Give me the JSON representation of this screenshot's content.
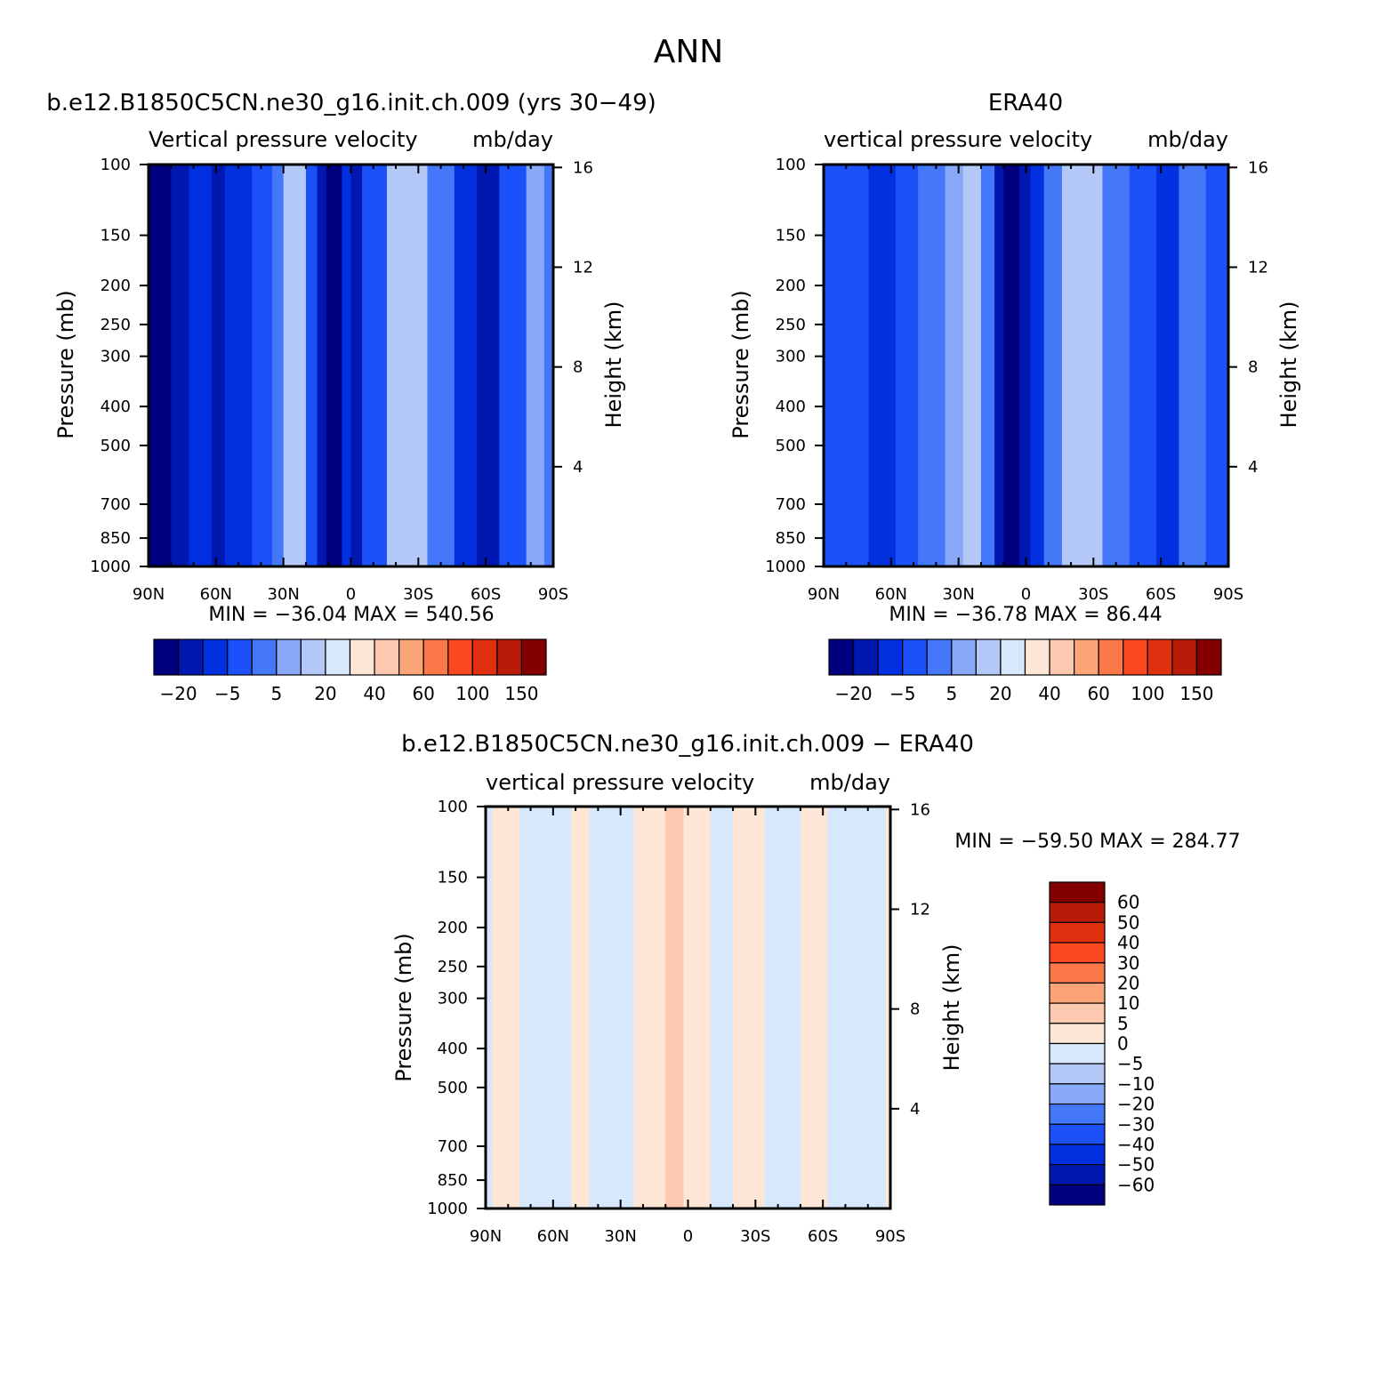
{
  "page_title": "ANN",
  "colors": {
    "abs_scale": [
      "#00007f",
      "#0018b0",
      "#0030e0",
      "#1c50f8",
      "#4478f8",
      "#88a8f8",
      "#b4c8f8",
      "#d8e8fc",
      "#fde6d6",
      "#fcc8b0",
      "#fba478",
      "#fb7848",
      "#fb4820",
      "#e03010",
      "#b81c08",
      "#840000"
    ],
    "diff_scale": [
      "#00007f",
      "#0018b0",
      "#0030e0",
      "#1c50f8",
      "#4478f8",
      "#88a8f8",
      "#b4c8f8",
      "#d8e8fc",
      "#fde6d6",
      "#fcc8b0",
      "#fba478",
      "#fb7848",
      "#fb4820",
      "#e03010",
      "#b81c08",
      "#840000"
    ]
  },
  "chart_data": [
    {
      "id": "model",
      "type": "heatmap",
      "title": "b.e12.B1850C5CN.ne30_g16.init.ch.009 (yrs 30-49)",
      "left_string": "Vertical pressure velocity",
      "right_string": "mb/day",
      "ylabel": "Pressure (mb)",
      "y2label": "Height (km)",
      "x_ticks": [
        "90N",
        "60N",
        "30N",
        "0",
        "30S",
        "60S",
        "90S"
      ],
      "x_values": [
        90,
        60,
        30,
        0,
        -30,
        -60,
        -90
      ],
      "xlim": [
        90,
        -90
      ],
      "y_ticks": [
        "100",
        "150",
        "200",
        "250",
        "300",
        "400",
        "500",
        "700",
        "850",
        "1000"
      ],
      "y_values": [
        100,
        150,
        200,
        250,
        300,
        400,
        500,
        700,
        850,
        1000
      ],
      "ylim": [
        100,
        1000
      ],
      "y_scale": "log",
      "y2_ticks": [
        "16",
        "12",
        "8",
        "4"
      ],
      "y2_values": [
        16,
        12,
        8,
        4
      ],
      "stats": "MIN = -36.04   MAX = 540.56",
      "colorbar": {
        "orientation": "horizontal",
        "labels": [
          "-20",
          "-5",
          "5",
          "20",
          "40",
          "60",
          "100",
          "150"
        ]
      },
      "field": [
        {
          "lat": [
            90,
            80
          ],
          "level": 0
        },
        {
          "lat": [
            80,
            72
          ],
          "level": 1
        },
        {
          "lat": [
            72,
            62
          ],
          "level": 2
        },
        {
          "lat": [
            62,
            56
          ],
          "level": 1
        },
        {
          "lat": [
            56,
            44
          ],
          "level": 2
        },
        {
          "lat": [
            44,
            35
          ],
          "level": 3
        },
        {
          "lat": [
            35,
            30
          ],
          "level": 4
        },
        {
          "lat": [
            30,
            20
          ],
          "level": 6
        },
        {
          "lat": [
            20,
            15
          ],
          "level": 3
        },
        {
          "lat": [
            15,
            11
          ],
          "level": 1
        },
        {
          "lat": [
            11,
            4
          ],
          "level": 0
        },
        {
          "lat": [
            4,
            0
          ],
          "level": 2
        },
        {
          "lat": [
            0,
            -5
          ],
          "level": 1
        },
        {
          "lat": [
            -5,
            -16
          ],
          "level": 3
        },
        {
          "lat": [
            -16,
            -34
          ],
          "level": 6
        },
        {
          "lat": [
            -34,
            -46
          ],
          "level": 4
        },
        {
          "lat": [
            -46,
            -56
          ],
          "level": 2
        },
        {
          "lat": [
            -56,
            -66
          ],
          "level": 1
        },
        {
          "lat": [
            -66,
            -78
          ],
          "level": 3
        },
        {
          "lat": [
            -78,
            -86
          ],
          "level": 5
        },
        {
          "lat": [
            -86,
            -90
          ],
          "level": 4
        }
      ]
    },
    {
      "id": "obs",
      "type": "heatmap",
      "title": "ERA40",
      "left_string": "vertical pressure velocity",
      "right_string": "mb/day",
      "ylabel": "Pressure (mb)",
      "y2label": "Height (km)",
      "x_ticks": [
        "90N",
        "60N",
        "30N",
        "0",
        "30S",
        "60S",
        "90S"
      ],
      "x_values": [
        90,
        60,
        30,
        0,
        -30,
        -60,
        -90
      ],
      "xlim": [
        90,
        -90
      ],
      "y_ticks": [
        "100",
        "150",
        "200",
        "250",
        "300",
        "400",
        "500",
        "700",
        "850",
        "1000"
      ],
      "y_values": [
        100,
        150,
        200,
        250,
        300,
        400,
        500,
        700,
        850,
        1000
      ],
      "ylim": [
        100,
        1000
      ],
      "y_scale": "log",
      "y2_ticks": [
        "16",
        "12",
        "8",
        "4"
      ],
      "y2_values": [
        16,
        12,
        8,
        4
      ],
      "stats": "MIN = -36.78   MAX =   86.44",
      "colorbar": {
        "orientation": "horizontal",
        "labels": [
          "-20",
          "-5",
          "5",
          "20",
          "40",
          "60",
          "100",
          "150"
        ]
      },
      "field": [
        {
          "lat": [
            90,
            80
          ],
          "level": 3
        },
        {
          "lat": [
            80,
            70
          ],
          "level": 3
        },
        {
          "lat": [
            70,
            58
          ],
          "level": 2
        },
        {
          "lat": [
            58,
            48
          ],
          "level": 3
        },
        {
          "lat": [
            48,
            36
          ],
          "level": 4
        },
        {
          "lat": [
            36,
            28
          ],
          "level": 5
        },
        {
          "lat": [
            28,
            20
          ],
          "level": 6
        },
        {
          "lat": [
            20,
            14
          ],
          "level": 4
        },
        {
          "lat": [
            14,
            10
          ],
          "level": 1
        },
        {
          "lat": [
            10,
            3
          ],
          "level": 0
        },
        {
          "lat": [
            3,
            -2
          ],
          "level": 1
        },
        {
          "lat": [
            -2,
            -8
          ],
          "level": 2
        },
        {
          "lat": [
            -8,
            -16
          ],
          "level": 4
        },
        {
          "lat": [
            -16,
            -34
          ],
          "level": 6
        },
        {
          "lat": [
            -34,
            -46
          ],
          "level": 4
        },
        {
          "lat": [
            -46,
            -58
          ],
          "level": 3
        },
        {
          "lat": [
            -58,
            -68
          ],
          "level": 2
        },
        {
          "lat": [
            -68,
            -80
          ],
          "level": 4
        },
        {
          "lat": [
            -80,
            -90
          ],
          "level": 3
        }
      ]
    },
    {
      "id": "diff",
      "type": "heatmap",
      "title": "b.e12.B1850C5CN.ne30_g16.init.ch.009 - ERA40",
      "left_string": "vertical pressure velocity",
      "right_string": "mb/day",
      "ylabel": "Pressure (mb)",
      "y2label": "Height (km)",
      "x_ticks": [
        "90N",
        "60N",
        "30N",
        "0",
        "30S",
        "60S",
        "90S"
      ],
      "x_values": [
        90,
        60,
        30,
        0,
        -30,
        -60,
        -90
      ],
      "xlim": [
        90,
        -90
      ],
      "y_ticks": [
        "100",
        "150",
        "200",
        "250",
        "300",
        "400",
        "500",
        "700",
        "850",
        "1000"
      ],
      "y_values": [
        100,
        150,
        200,
        250,
        300,
        400,
        500,
        700,
        850,
        1000
      ],
      "ylim": [
        100,
        1000
      ],
      "y_scale": "log",
      "y2_ticks": [
        "16",
        "12",
        "8",
        "4"
      ],
      "y2_values": [
        16,
        12,
        8,
        4
      ],
      "stats": "MIN = -59.50   MAX = 284.77",
      "colorbar": {
        "orientation": "vertical",
        "labels": [
          "60",
          "50",
          "40",
          "30",
          "20",
          "10",
          "5",
          "0",
          "-5",
          "-10",
          "-20",
          "-30",
          "-40",
          "-50",
          "-60"
        ]
      },
      "field": [
        {
          "lat": [
            90,
            87
          ],
          "level": 7
        },
        {
          "lat": [
            87,
            75
          ],
          "level": 8
        },
        {
          "lat": [
            75,
            62
          ],
          "level": 7
        },
        {
          "lat": [
            62,
            52
          ],
          "level": 7
        },
        {
          "lat": [
            52,
            44
          ],
          "level": 8
        },
        {
          "lat": [
            44,
            24
          ],
          "level": 7
        },
        {
          "lat": [
            24,
            10
          ],
          "level": 8
        },
        {
          "lat": [
            10,
            2
          ],
          "level": 9
        },
        {
          "lat": [
            2,
            -10
          ],
          "level": 8
        },
        {
          "lat": [
            -10,
            -20
          ],
          "level": 7
        },
        {
          "lat": [
            -20,
            -34
          ],
          "level": 8
        },
        {
          "lat": [
            -34,
            -50
          ],
          "level": 7
        },
        {
          "lat": [
            -50,
            -62
          ],
          "level": 8
        },
        {
          "lat": [
            -62,
            -76
          ],
          "level": 7
        },
        {
          "lat": [
            -76,
            -88
          ],
          "level": 7
        },
        {
          "lat": [
            -88,
            -90
          ],
          "level": 8
        }
      ]
    }
  ]
}
